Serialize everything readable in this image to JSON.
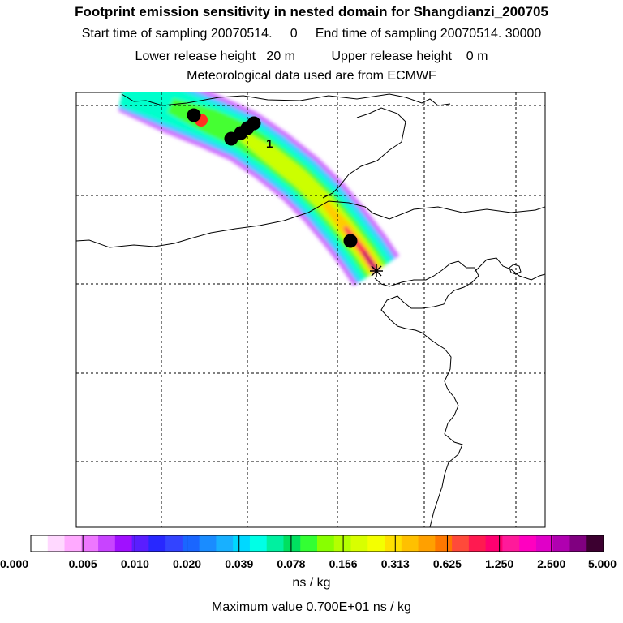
{
  "header": {
    "title": "Footprint emission sensitivity in nested domain for Shangdianzi_200705",
    "line_times": "Start time of sampling 20070514.     0     End time of sampling 20070514. 30000",
    "line_heights": "Lower release height   20 m          Upper release height    0 m",
    "line_met": "Meteorological data used are from ECMWF"
  },
  "map": {
    "cluster_label": "1",
    "plume_colors": [
      "#d070ff",
      "#3ad0ff",
      "#00ffcc",
      "#44ff33",
      "#ccff00",
      "#ffcc00",
      "#ff3355",
      "#ff00aa",
      "#5a0040"
    ]
  },
  "colorbar": {
    "colors": [
      "#ffffff",
      "#ffd8ff",
      "#ffaaff",
      "#ee77ff",
      "#c844ff",
      "#a010ff",
      "#5a1eff",
      "#2828ff",
      "#3344ff",
      "#1a66ff",
      "#1a8cff",
      "#18b0ff",
      "#00d8ff",
      "#00ffe6",
      "#00f0a0",
      "#00e060",
      "#33ff33",
      "#88ff00",
      "#b4ff00",
      "#d8ff00",
      "#f4ff00",
      "#ffe000",
      "#ffc000",
      "#ffa000",
      "#ff7800",
      "#ff4a3a",
      "#ff1a50",
      "#ff0070",
      "#ff1a9a",
      "#ff00c0",
      "#e000c8",
      "#b000b0",
      "#800080",
      "#3c0030"
    ],
    "tick_labels": [
      "0.000",
      "0.005",
      "0.010",
      "0.020",
      "0.039",
      "0.078",
      "0.156",
      "0.313",
      "0.625",
      "1.250",
      "2.500",
      "5.000"
    ],
    "units": "ns / kg",
    "max_value_text": "Maximum value  0.700E+01 ns / kg"
  }
}
